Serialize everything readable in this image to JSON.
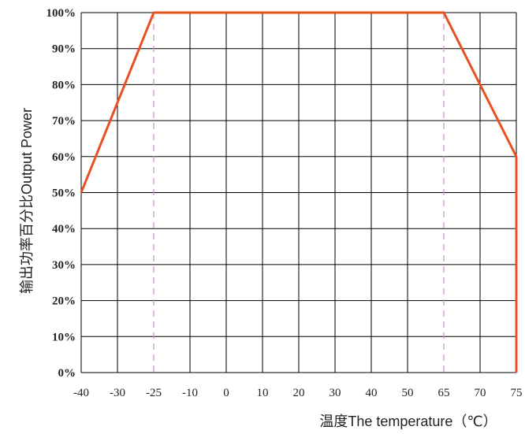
{
  "chart_data": {
    "type": "line",
    "title": "",
    "xlabel": "温度The temperature（℃）",
    "ylabel": "输出功率百分比Output Power",
    "categories": [
      "-40",
      "-30",
      "-25",
      "-10",
      "0",
      "10",
      "20",
      "30",
      "40",
      "50",
      "65",
      "70",
      "75"
    ],
    "y_ticks": [
      "0%",
      "10%",
      "20%",
      "30%",
      "40%",
      "50%",
      "60%",
      "70%",
      "80%",
      "90%",
      "100%"
    ],
    "ylim": [
      0,
      100
    ],
    "grid": true,
    "series": [
      {
        "x": [
          "-40",
          "-25",
          "65",
          "75",
          "75"
        ],
        "y": [
          50,
          100,
          100,
          60,
          0
        ]
      }
    ],
    "reference_lines": [
      "-25",
      "65"
    ],
    "colors": {
      "series": "#e8501e",
      "grid": "#000000",
      "reference": "#cc88cc",
      "tick_first": "#e8501e",
      "tick_last": "#33aa33",
      "tick_default": "#222222"
    }
  }
}
